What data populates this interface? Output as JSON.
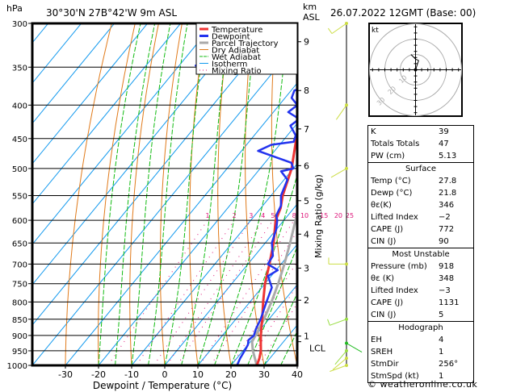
{
  "header": {
    "hpa_label": "hPa",
    "location": "30°30'N  27B°42'W  9m  ASL",
    "km_label": "km",
    "asl_label": "ASL",
    "datetime": "26.07.2022  12GMT  (Base: 00)"
  },
  "chart_data": {
    "type": "line",
    "title": "30°30'N 27B°42'W 9m ASL",
    "xlabel": "Dewpoint / Temperature (°C)",
    "ylabel": "hPa",
    "right_axis_label": "Mixing Ratio (g/kg)",
    "xlim": [
      -40,
      40
    ],
    "ylim": [
      1000,
      300
    ],
    "x_ticks": [
      -30,
      -20,
      -10,
      0,
      10,
      20,
      30,
      40
    ],
    "y_ticks": [
      300,
      350,
      400,
      450,
      500,
      550,
      600,
      650,
      700,
      750,
      800,
      850,
      900,
      950,
      1000
    ],
    "km_ticks": [
      {
        "km": "1",
        "p": 902
      },
      {
        "km": "2",
        "p": 795
      },
      {
        "km": "3",
        "p": 710
      },
      {
        "km": "4",
        "p": 630
      },
      {
        "km": "5",
        "p": 560
      },
      {
        "km": "6",
        "p": 495
      },
      {
        "km": "7",
        "p": 435
      },
      {
        "km": "8",
        "p": 380
      },
      {
        "km": "9",
        "p": 320
      }
    ],
    "lcl": {
      "label": "LCL",
      "p": 920
    },
    "mixing_ratio_labels": [
      "1",
      "2",
      "3",
      "4",
      "5",
      "8",
      "10",
      "15",
      "20",
      "25"
    ],
    "mixing_ratio_values": [
      1,
      2,
      3,
      4,
      5,
      8,
      10,
      15,
      20,
      25
    ],
    "legend": {
      "placement": "top-right",
      "entries": [
        {
          "name": "Temperature",
          "color": "#ee3333",
          "style": "solid"
        },
        {
          "name": "Dewpoint",
          "color": "#2233ee",
          "style": "solid"
        },
        {
          "name": "Parcel Trajectory",
          "color": "#aaaaaa",
          "style": "solid"
        },
        {
          "name": "Dry Adiabat",
          "color": "#e07a1a",
          "style": "solid"
        },
        {
          "name": "Wet Adiabat",
          "color": "#11bb11",
          "style": "dashed"
        },
        {
          "name": "Isotherm",
          "color": "#1199ee",
          "style": "solid"
        },
        {
          "name": "Mixing Ratio",
          "color": "#dd1177",
          "style": "dotted"
        }
      ]
    },
    "series": [
      {
        "name": "Temperature",
        "color": "#ee3333",
        "p": [
          1000,
          975,
          950,
          925,
          900,
          875,
          850,
          800,
          750,
          700,
          650,
          600,
          575,
          550,
          500,
          450,
          400,
          370,
          350,
          320,
          300
        ],
        "t": [
          27.8,
          26.8,
          25.4,
          23.5,
          21.6,
          19.8,
          18.0,
          14.0,
          10.0,
          6.5,
          2.5,
          -2.5,
          -4.0,
          -6.5,
          -10.5,
          -16.5,
          -22.5,
          -27.0,
          -30.0,
          -35.5,
          -39.5
        ]
      },
      {
        "name": "Dewpoint",
        "color": "#2233ee",
        "p": [
          1000,
          975,
          950,
          930,
          915,
          900,
          880,
          850,
          800,
          760,
          730,
          715,
          700,
          680,
          650,
          620,
          600,
          590,
          570,
          550,
          520,
          505,
          500,
          490,
          470,
          460,
          455,
          445,
          430,
          420,
          410,
          400,
          390,
          380,
          372,
          365,
          358,
          352,
          348,
          345,
          342,
          340,
          338,
          330,
          300
        ],
        "t": [
          21.8,
          21.0,
          20.5,
          20.0,
          19.0,
          19.5,
          18.5,
          17.5,
          15.0,
          13.0,
          9.0,
          10.5,
          6.0,
          5.5,
          2.0,
          0.0,
          -2.0,
          -3.5,
          -4.5,
          -7.0,
          -9.0,
          -13.0,
          -10.0,
          -12.0,
          -25.0,
          -22.5,
          -16.5,
          -17.5,
          -21.5,
          -20.5,
          -25.5,
          -24.5,
          -28.0,
          -29.0,
          -25.5,
          -31.0,
          -29.0,
          -60.0,
          -65.0,
          -56.0,
          -62.0,
          -58.0,
          -65.0,
          -66.0,
          -66.0
        ]
      },
      {
        "name": "Parcel Trajectory",
        "color": "#aaaaaa",
        "p": [
          1000,
          950,
          920,
          900,
          850,
          800,
          750,
          700,
          650,
          600,
          550,
          500,
          450,
          400,
          350,
          300
        ],
        "t": [
          27.8,
          23.0,
          20.5,
          20.0,
          18.5,
          16.5,
          14.0,
          11.0,
          7.5,
          3.5,
          -1.0,
          -6.0,
          -12.0,
          -19.0,
          -27.5,
          -37.5
        ]
      }
    ],
    "wind_barbs": [
      {
        "p": 1000,
        "dir": 250,
        "speed_kt": 5,
        "color": "#ccdd44"
      },
      {
        "p": 975,
        "dir": 230,
        "speed_kt": 5,
        "color": "#ccdd44"
      },
      {
        "p": 950,
        "dir": 220,
        "speed_kt": 5,
        "color": "#99dd44"
      },
      {
        "p": 925,
        "dir": 120,
        "speed_kt": 5,
        "color": "#22bb22"
      },
      {
        "p": 850,
        "dir": 250,
        "speed_kt": 10,
        "color": "#99dd44"
      },
      {
        "p": 700,
        "dir": 270,
        "speed_kt": 10,
        "color": "#ccdd44"
      },
      {
        "p": 500,
        "dir": 240,
        "speed_kt": 5,
        "color": "#ccdd44"
      },
      {
        "p": 400,
        "dir": 215,
        "speed_kt": 5,
        "color": "#ccdd44"
      },
      {
        "p": 300,
        "dir": 235,
        "speed_kt": 10,
        "color": "#ccdd44"
      }
    ],
    "hodograph": {
      "unit_label": "kt",
      "ring_labels": [
        "10",
        "20",
        "30"
      ],
      "points_kt": [
        [
          0,
          0
        ],
        [
          1,
          3
        ],
        [
          2,
          6
        ],
        [
          0,
          7
        ],
        [
          -2,
          9
        ],
        [
          -3,
          10
        ]
      ]
    }
  },
  "indices": {
    "general": [
      {
        "label": "K",
        "value": "39"
      },
      {
        "label": "Totals Totals",
        "value": "47"
      },
      {
        "label": "PW (cm)",
        "value": "5.13"
      }
    ],
    "surface": {
      "title": "Surface",
      "rows": [
        {
          "label": "Temp (°C)",
          "value": "27.8"
        },
        {
          "label": "Dewp (°C)",
          "value": "21.8"
        },
        {
          "label": "θε(K)",
          "value": "346"
        },
        {
          "label": "Lifted Index",
          "value": "−2"
        },
        {
          "label": "CAPE (J)",
          "value": "772"
        },
        {
          "label": "CIN (J)",
          "value": "90"
        }
      ]
    },
    "most_unstable": {
      "title": "Most Unstable",
      "rows": [
        {
          "label": "Pressure (mb)",
          "value": "918"
        },
        {
          "label": "θε (K)",
          "value": "348"
        },
        {
          "label": "Lifted Index",
          "value": "−3"
        },
        {
          "label": "CAPE (J)",
          "value": "1131"
        },
        {
          "label": "CIN (J)",
          "value": "5"
        }
      ]
    },
    "hodograph": {
      "title": "Hodograph",
      "rows": [
        {
          "label": "EH",
          "value": "4"
        },
        {
          "label": "SREH",
          "value": "1"
        },
        {
          "label": "StmDir",
          "value": "256°"
        },
        {
          "label": "StmSpd (kt)",
          "value": "1"
        }
      ]
    }
  },
  "footer": {
    "copyright": "© weatheronline.co.uk"
  }
}
